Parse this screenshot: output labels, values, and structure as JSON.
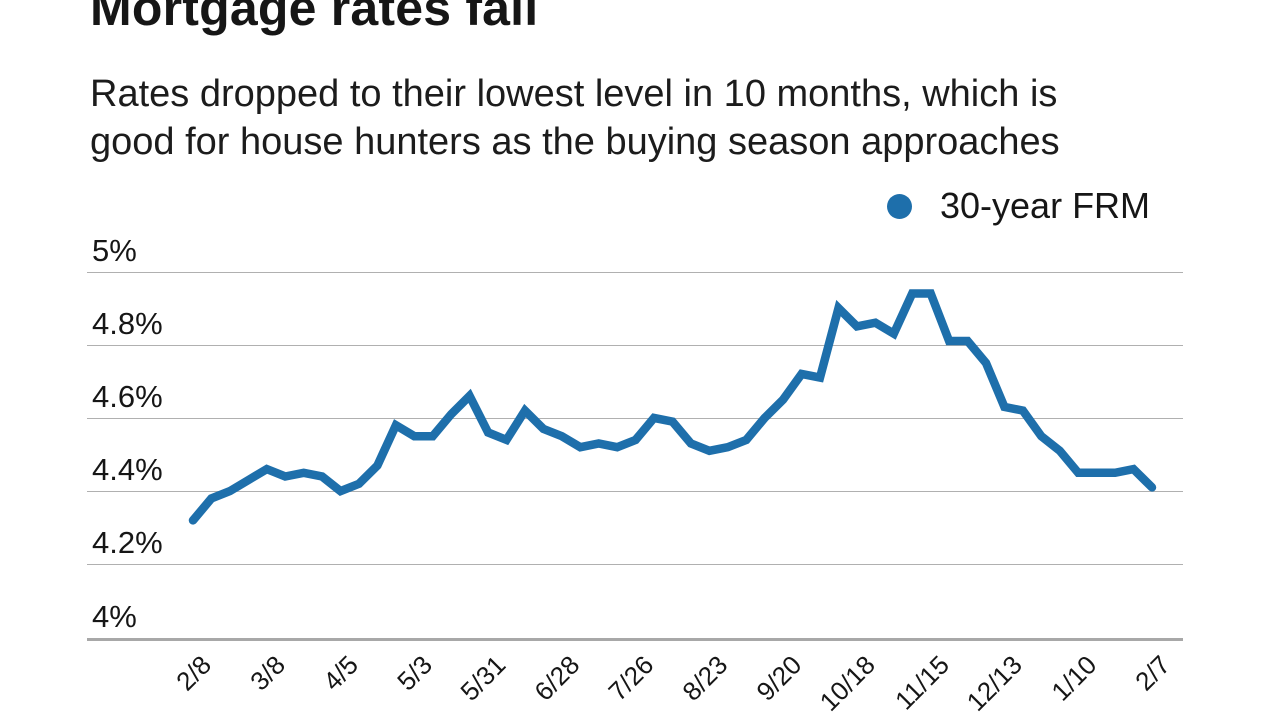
{
  "header": {
    "title": "Mortgage rates fall",
    "subtitle_line1": "Rates dropped to their lowest level in 10 months, which is",
    "subtitle_line2": "good for house hunters as the buying season approaches"
  },
  "legend": {
    "label": "30-year FRM"
  },
  "colors": {
    "line": "#1e6fab",
    "grid": "#b0b0b0",
    "axis": "#a8a8a8",
    "text": "#161616"
  },
  "chart_data": {
    "type": "line",
    "title": "Mortgage rates fall",
    "subtitle": "Rates dropped to their lowest level in 10 months, which is good for house hunters as the buying season approaches",
    "xlabel": "",
    "ylabel": "",
    "grid": "horizontal",
    "legend_position": "top-right",
    "ylim": [
      4.0,
      5.0
    ],
    "y_ticks": [
      {
        "label": "5%",
        "value": 5.0
      },
      {
        "label": "4.8%",
        "value": 4.8
      },
      {
        "label": "4.6%",
        "value": 4.6
      },
      {
        "label": "4.4%",
        "value": 4.4
      },
      {
        "label": "4.2%",
        "value": 4.2
      },
      {
        "label": "4%",
        "value": 4.0
      }
    ],
    "x": [
      "2/8",
      "2/15",
      "2/22",
      "3/1",
      "3/8",
      "3/15",
      "3/22",
      "3/29",
      "4/5",
      "4/12",
      "4/19",
      "4/26",
      "5/3",
      "5/10",
      "5/17",
      "5/24",
      "5/31",
      "6/7",
      "6/14",
      "6/21",
      "6/28",
      "7/5",
      "7/12",
      "7/19",
      "7/26",
      "8/2",
      "8/9",
      "8/16",
      "8/23",
      "8/30",
      "9/6",
      "9/13",
      "9/20",
      "9/27",
      "10/4",
      "10/11",
      "10/18",
      "10/25",
      "11/1",
      "11/8",
      "11/15",
      "11/22",
      "11/29",
      "12/6",
      "12/13",
      "12/20",
      "12/27",
      "1/3",
      "1/10",
      "1/17",
      "1/24",
      "1/31",
      "2/7"
    ],
    "x_tick_step": 4,
    "x_tick_labels": [
      "2/8",
      "3/8",
      "4/5",
      "5/3",
      "5/31",
      "6/28",
      "7/26",
      "8/23",
      "9/20",
      "10/18",
      "11/15",
      "12/13",
      "1/10",
      "2/7"
    ],
    "series": [
      {
        "name": "30-year FRM",
        "values": [
          4.32,
          4.38,
          4.4,
          4.43,
          4.46,
          4.44,
          4.45,
          4.44,
          4.4,
          4.42,
          4.47,
          4.58,
          4.55,
          4.55,
          4.61,
          4.66,
          4.56,
          4.54,
          4.62,
          4.57,
          4.55,
          4.52,
          4.53,
          4.52,
          4.54,
          4.6,
          4.59,
          4.53,
          4.51,
          4.52,
          4.54,
          4.6,
          4.65,
          4.72,
          4.71,
          4.9,
          4.85,
          4.86,
          4.83,
          4.94,
          4.94,
          4.81,
          4.81,
          4.75,
          4.63,
          4.62,
          4.55,
          4.51,
          4.45,
          4.45,
          4.45,
          4.46,
          4.41
        ]
      }
    ]
  }
}
